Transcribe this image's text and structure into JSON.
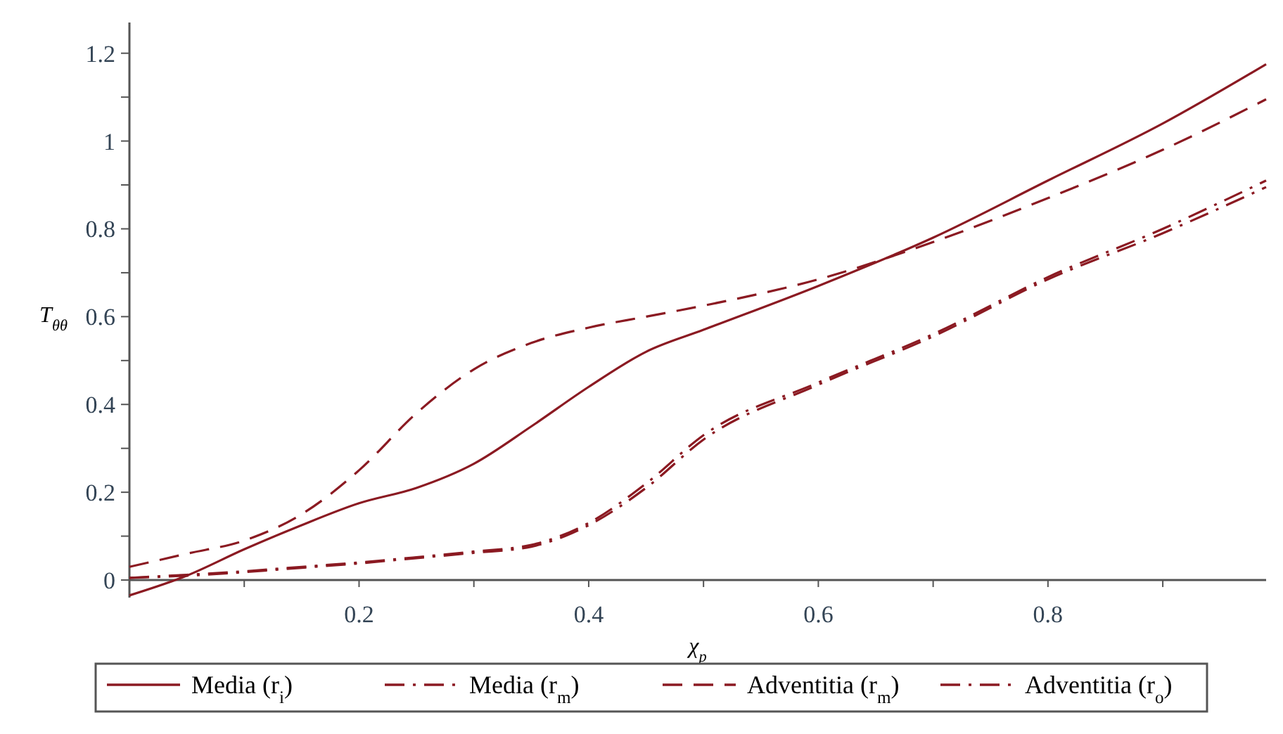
{
  "chart_data": {
    "type": "line",
    "xlabel": "χ$_{p}$",
    "ylabel": "T$_{θθ}$",
    "xlim": [
      0,
      0.99
    ],
    "ylim": [
      -0.04,
      1.27
    ],
    "xticks": [
      {
        "value": 0.1,
        "label": null
      },
      0.2,
      {
        "value": 0.3,
        "label": null
      },
      0.4,
      {
        "value": 0.5,
        "label": null
      },
      0.6,
      {
        "value": 0.7,
        "label": null
      },
      0.8,
      {
        "value": 0.9,
        "label": null
      }
    ],
    "yticks": [
      0,
      {
        "value": 0.1,
        "label": null
      },
      0.2,
      {
        "value": 0.3,
        "label": null
      },
      0.4,
      {
        "value": 0.5,
        "label": null
      },
      0.6,
      {
        "value": 0.7,
        "label": null
      },
      0.8,
      {
        "value": 0.9,
        "label": null
      },
      1,
      {
        "value": 1.1,
        "label": null
      },
      1.2
    ],
    "grid": false,
    "legend": "bottom",
    "x": [
      0,
      0.05,
      0.1,
      0.15,
      0.2,
      0.25,
      0.3,
      0.35,
      0.4,
      0.45,
      0.5,
      0.6,
      0.7,
      0.8,
      0.9,
      0.99
    ],
    "series": [
      {
        "name": "Media (r$_{i}$)",
        "color": "#8b1a22",
        "line_style": "solid",
        "values": [
          -0.035,
          0.01,
          0.07,
          0.125,
          0.175,
          0.21,
          0.265,
          0.35,
          0.44,
          0.52,
          0.57,
          0.67,
          0.78,
          0.91,
          1.04,
          1.175
        ]
      },
      {
        "name": "Media (r$_{m}$)",
        "color": "#8b1a22",
        "line_style": "dashdot",
        "values": [
          0.005,
          0.012,
          0.02,
          0.03,
          0.04,
          0.052,
          0.065,
          0.08,
          0.13,
          0.22,
          0.33,
          0.45,
          0.56,
          0.69,
          0.8,
          0.91
        ]
      },
      {
        "name": "Adventitia (r$_{m}$)",
        "color": "#8b1a22",
        "line_style": "dashed",
        "values": [
          0.03,
          0.06,
          0.09,
          0.15,
          0.25,
          0.38,
          0.48,
          0.54,
          0.575,
          0.6,
          0.625,
          0.685,
          0.77,
          0.87,
          0.98,
          1.095
        ]
      },
      {
        "name": "Adventitia (r$_{o}$)",
        "color": "#8b1a22",
        "line_style": "dashdot",
        "values": [
          0.005,
          0.01,
          0.018,
          0.028,
          0.038,
          0.05,
          0.062,
          0.076,
          0.125,
          0.21,
          0.32,
          0.445,
          0.555,
          0.685,
          0.79,
          0.895
        ]
      }
    ]
  }
}
